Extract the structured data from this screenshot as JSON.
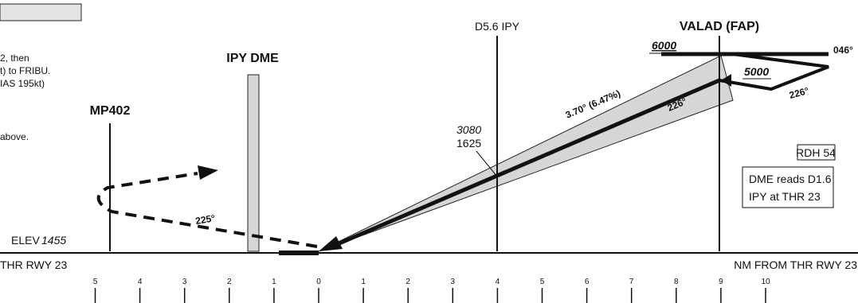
{
  "profile": {
    "facilities": {
      "dme": "IPY DME",
      "mp402": "MP402",
      "d56": "D5.6 IPY",
      "valad": "VALAD (FAP)"
    },
    "altitudes": {
      "valad_upper": "6000",
      "valad_lower": "5000",
      "d56_upper": "3080",
      "d56_lower": "1625"
    },
    "glidepath": "3.70° (6.47%)",
    "courses": {
      "inbound": "226°",
      "outbound": "046°",
      "turn": "226°",
      "missed": "225°"
    },
    "notes": {
      "line1": "2, then",
      "line2": "t) to FRIBU.",
      "line3": "IAS 195kt)",
      "line4": "above."
    },
    "elevation": {
      "prefix": "ELEV",
      "value": "1455"
    },
    "threshold": "THR RWY 23",
    "distance_label": "NM FROM THR RWY 23",
    "rdh": "RDH 54",
    "dme_box": {
      "line1": "DME reads D1.6",
      "line2": "IPY at THR 23"
    },
    "scale": [
      {
        "label": "5",
        "nm": -5
      },
      {
        "label": "4",
        "nm": -4
      },
      {
        "label": "3",
        "nm": -3
      },
      {
        "label": "2",
        "nm": -2
      },
      {
        "label": "1",
        "nm": -1
      },
      {
        "label": "0",
        "nm": 0
      },
      {
        "label": "1",
        "nm": 1
      },
      {
        "label": "2",
        "nm": 2
      },
      {
        "label": "3",
        "nm": 3
      },
      {
        "label": "4",
        "nm": 4
      },
      {
        "label": "5",
        "nm": 5
      },
      {
        "label": "6",
        "nm": 6
      },
      {
        "label": "7",
        "nm": 7
      },
      {
        "label": "8",
        "nm": 8
      },
      {
        "label": "9",
        "nm": 9
      },
      {
        "label": "10",
        "nm": 10
      }
    ]
  }
}
